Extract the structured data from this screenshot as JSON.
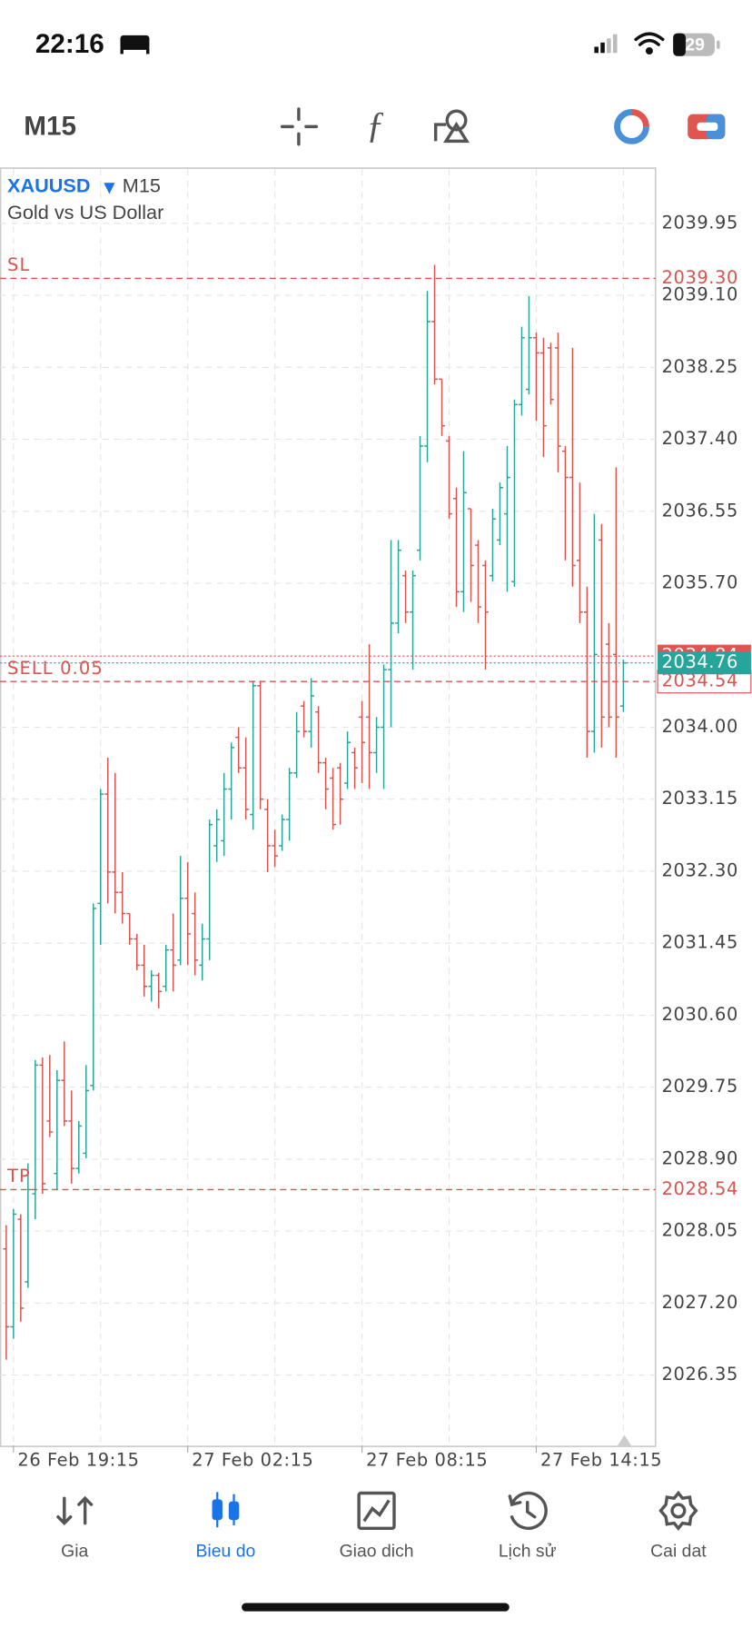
{
  "status_bar": {
    "time": "22:16",
    "battery": "29"
  },
  "toolbar": {
    "timeframe": "M15"
  },
  "chart_data": {
    "type": "ohlc",
    "symbol": "XAUUSD",
    "timeframe": "M15",
    "description": "Gold vs US Dollar",
    "up_color": "#26a69a",
    "down_color": "#d9534f",
    "grid": true,
    "categories": [
      null,
      "26 Feb 19:15",
      null,
      null,
      null,
      null,
      null,
      null,
      null,
      null,
      null,
      null,
      null,
      null,
      null,
      null,
      null,
      null,
      null,
      null,
      null,
      null,
      null,
      null,
      null,
      "27 Feb 02:15",
      null,
      null,
      null,
      null,
      null,
      null,
      null,
      null,
      null,
      null,
      null,
      null,
      null,
      null,
      null,
      null,
      null,
      null,
      null,
      null,
      null,
      null,
      null,
      "27 Feb 08:15",
      null,
      null,
      null,
      null,
      null,
      null,
      null,
      null,
      null,
      null,
      null,
      null,
      null,
      null,
      null,
      null,
      null,
      null,
      null,
      null,
      null,
      null,
      null,
      "27 Feb 14:15",
      null,
      null,
      null,
      null,
      null,
      null,
      null,
      null,
      null,
      null,
      null,
      null
    ],
    "open": [
      2027.84,
      2026.92,
      2028.19,
      2027.45,
      2028.49,
      2030.01,
      2029.35,
      2028.73,
      2029.83,
      2029.35,
      2028.79,
      2028.97,
      2029.77,
      2031.92,
      2033.21,
      2032.29,
      2032.05,
      2031.8,
      2031.5,
      2031.19,
      2030.94,
      2031.07,
      2030.94,
      2031.37,
      2031.25,
      2031.98,
      2031.8,
      2031.19,
      2031.5,
      2032.6,
      2032.66,
      2033.27,
      2033.88,
      2033.52,
      2032.97,
      2034.49,
      2033.03,
      2032.6,
      2032.6,
      2032.91,
      2033.46,
      2034.25,
      2033.95,
      2034.18,
      2033.58,
      2033.4,
      2033.52,
      2033.34,
      2033.7,
      2034.12,
      2034.12,
      2033.7,
      2034.0,
      2034.68,
      2035.23,
      2035.79,
      2035.36,
      2036.09,
      2037.32,
      2038.79,
      2038.11,
      2037.38,
      2036.7,
      2035.6,
      2036.58,
      2036.15,
      2035.91,
      2035.79,
      2036.21,
      2036.52,
      2035.72,
      2037.81,
      2037.99,
      2038.6,
      2038.42,
      2038.48,
      2038.48,
      2037.26,
      2036.95,
      2035.97,
      2035.36,
      2033.95,
      2036.21,
      2034.98,
      2034.86,
      2034.25
    ],
    "high": [
      2028.12,
      2028.31,
      2028.25,
      2028.85,
      2030.07,
      2030.1,
      2030.13,
      2029.95,
      2030.29,
      2029.71,
      2029.35,
      2030.01,
      2031.92,
      2033.27,
      2033.64,
      2033.46,
      2032.29,
      2031.8,
      2031.56,
      2031.43,
      2031.13,
      2031.1,
      2031.43,
      2031.8,
      2032.48,
      2032.41,
      2032.05,
      2031.68,
      2032.91,
      2033.03,
      2033.46,
      2033.82,
      2034.0,
      2033.88,
      2034.55,
      2034.55,
      2033.15,
      2032.79,
      2032.97,
      2033.52,
      2034.18,
      2034.31,
      2034.58,
      2034.25,
      2033.64,
      2033.52,
      2033.58,
      2033.95,
      2033.76,
      2034.31,
      2034.98,
      2034.12,
      2034.74,
      2036.21,
      2036.21,
      2035.85,
      2035.85,
      2037.44,
      2039.15,
      2039.46,
      2038.11,
      2037.44,
      2036.83,
      2037.26,
      2036.58,
      2036.21,
      2035.97,
      2036.58,
      2036.89,
      2037.32,
      2037.87,
      2038.73,
      2039.09,
      2038.66,
      2038.6,
      2038.54,
      2038.66,
      2037.32,
      2038.48,
      2036.89,
      2035.66,
      2036.52,
      2036.4,
      2035.23,
      2037.07,
      2034.8
    ],
    "low": [
      2026.53,
      2026.78,
      2026.98,
      2027.38,
      2028.19,
      2028.49,
      2029.16,
      2028.54,
      2029.29,
      2028.61,
      2028.73,
      2028.91,
      2029.71,
      2031.43,
      2031.92,
      2031.8,
      2031.68,
      2031.43,
      2031.13,
      2030.82,
      2030.76,
      2030.68,
      2030.88,
      2030.88,
      2031.19,
      2031.19,
      2031.07,
      2031.01,
      2031.25,
      2032.41,
      2032.48,
      2032.91,
      2033.46,
      2032.91,
      2032.79,
      2033.03,
      2032.29,
      2032.35,
      2032.54,
      2032.66,
      2033.4,
      2033.88,
      2033.76,
      2033.46,
      2033.03,
      2032.79,
      2032.85,
      2033.27,
      2033.27,
      2033.34,
      2033.27,
      2033.46,
      2033.27,
      2034.0,
      2035.11,
      2035.23,
      2034.68,
      2035.97,
      2037.13,
      2038.05,
      2037.44,
      2036.46,
      2035.42,
      2035.36,
      2035.48,
      2035.23,
      2034.68,
      2035.72,
      2036.15,
      2035.6,
      2035.66,
      2037.68,
      2037.93,
      2037.62,
      2037.19,
      2037.81,
      2037.01,
      2035.97,
      2035.66,
      2035.23,
      2033.64,
      2033.7,
      2033.76,
      2034.0,
      2033.64,
      2034.18
    ],
    "close": [
      2026.92,
      2028.25,
      2027.14,
      2028.54,
      2030.01,
      2028.61,
      2029.22,
      2029.83,
      2029.35,
      2028.79,
      2029.29,
      2029.71,
      2031.86,
      2033.21,
      2032.29,
      2032.05,
      2031.8,
      2031.5,
      2031.19,
      2030.94,
      2031.07,
      2030.88,
      2031.37,
      2031.19,
      2031.98,
      2031.56,
      2031.25,
      2031.5,
      2032.85,
      2032.91,
      2033.27,
      2033.76,
      2033.52,
      2033.03,
      2034.49,
      2033.15,
      2032.6,
      2032.48,
      2032.91,
      2033.46,
      2033.95,
      2033.95,
      2034.37,
      2033.58,
      2033.27,
      2032.85,
      2033.15,
      2033.82,
      2033.52,
      2033.82,
      2033.7,
      2034.0,
      2034.68,
      2035.23,
      2036.09,
      2035.36,
      2035.79,
      2037.32,
      2038.79,
      2038.11,
      2037.56,
      2036.52,
      2035.6,
      2036.77,
      2035.91,
      2035.42,
      2035.36,
      2036.46,
      2036.83,
      2036.95,
      2037.81,
      2038.6,
      2038.6,
      2038.42,
      2037.56,
      2037.87,
      2037.32,
      2036.95,
      2035.91,
      2035.36,
      2033.95,
      2034.86,
      2034.12,
      2034.12,
      2034.12,
      2034.76
    ],
    "ylim": [
      2025.52,
      2040.59
    ],
    "yticks": [
      2039.95,
      {
        "value": 2039.1,
        "label": "2039.10"
      },
      2038.25,
      {
        "value": 2037.4,
        "label": "2037.40"
      },
      2036.55,
      {
        "value": 2035.7,
        "label": "2035.70"
      },
      {
        "value": 2034.0,
        "label": "2034.00"
      },
      2033.15,
      {
        "value": 2032.3,
        "label": "2032.30"
      },
      2031.45,
      {
        "value": 2030.6,
        "label": "2030.60"
      },
      2029.75,
      {
        "value": 2028.9,
        "label": "2028.90"
      },
      2028.05,
      {
        "value": 2027.2,
        "label": "2027.20"
      },
      2026.35
    ],
    "price_lines": [
      {
        "label": "SL",
        "value": 2039.3,
        "value_label": "2039.30",
        "color": "#d9534f"
      },
      {
        "label": "TP",
        "value": 2028.54,
        "color": "#d9534f"
      },
      {
        "label": "SELL 0.05",
        "value": 2034.54,
        "color": "#d9534f"
      }
    ],
    "ask": 2034.84,
    "ask_color": "#e05550",
    "bid": 2034.76,
    "bid_color": "#26a69a"
  },
  "tabs": [
    {
      "label": "Gia",
      "active": false
    },
    {
      "label": "Bieu do",
      "active": true
    },
    {
      "label": "Giao dich",
      "active": false
    },
    {
      "label": "Lịch sử",
      "active": false
    },
    {
      "label": "Cai dat",
      "active": false
    }
  ]
}
